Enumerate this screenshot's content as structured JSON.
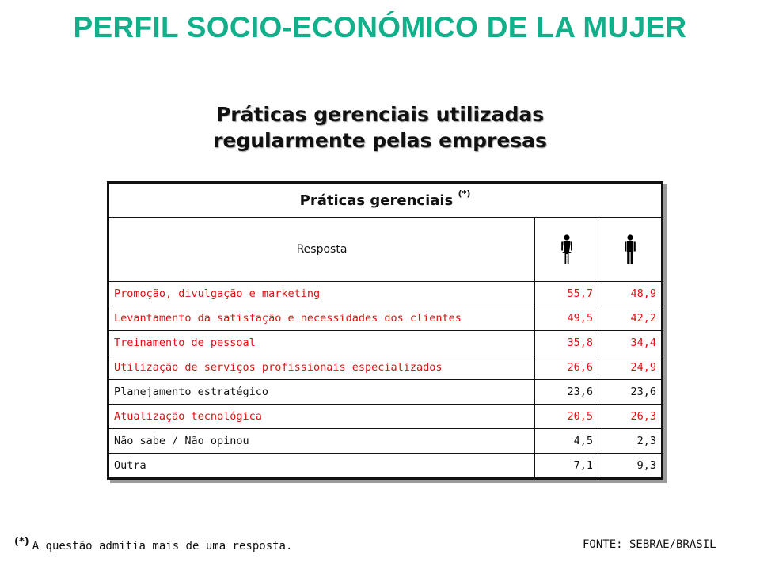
{
  "header": {
    "title": "PERFIL SOCIO-ECONÓMICO DE LA MUJER",
    "subtitle_line1": "Práticas gerenciais utilizadas",
    "subtitle_line2": "regularmente pelas empresas"
  },
  "table": {
    "caption": "Práticas gerenciais",
    "caption_mark": "(*)",
    "response_label": "Resposta",
    "column_icons": [
      "woman-icon",
      "man-icon"
    ],
    "rows": [
      {
        "label": "Promoção, divulgação e marketing",
        "women": "55,7",
        "men": "48,9",
        "highlight": true
      },
      {
        "label": "Levantamento da satisfação e necessidades dos clientes",
        "women": "49,5",
        "men": "42,2",
        "highlight": true
      },
      {
        "label": "Treinamento de pessoal",
        "women": "35,8",
        "men": "34,4",
        "highlight": true
      },
      {
        "label": "Utilização de serviços profissionais especializados",
        "women": "26,6",
        "men": "24,9",
        "highlight": true
      },
      {
        "label": "Planejamento estratégico",
        "women": "23,6",
        "men": "23,6",
        "highlight": false
      },
      {
        "label": "Atualização tecnológica",
        "women": "20,5",
        "men": "26,3",
        "highlight": true
      },
      {
        "label": "Não sabe / Não opinou",
        "women": "4,5",
        "men": "2,3",
        "highlight": false
      },
      {
        "label": "Outra",
        "women": "7,1",
        "men": "9,3",
        "highlight": false
      }
    ]
  },
  "footer": {
    "note_mark": "(*)",
    "note_text": "A questão admitia mais de uma resposta.",
    "source": "FONTE: SEBRAE/BRASIL"
  },
  "colors": {
    "title": "#12b08a",
    "highlight_text": "#e01010",
    "normal_text": "#111111"
  }
}
